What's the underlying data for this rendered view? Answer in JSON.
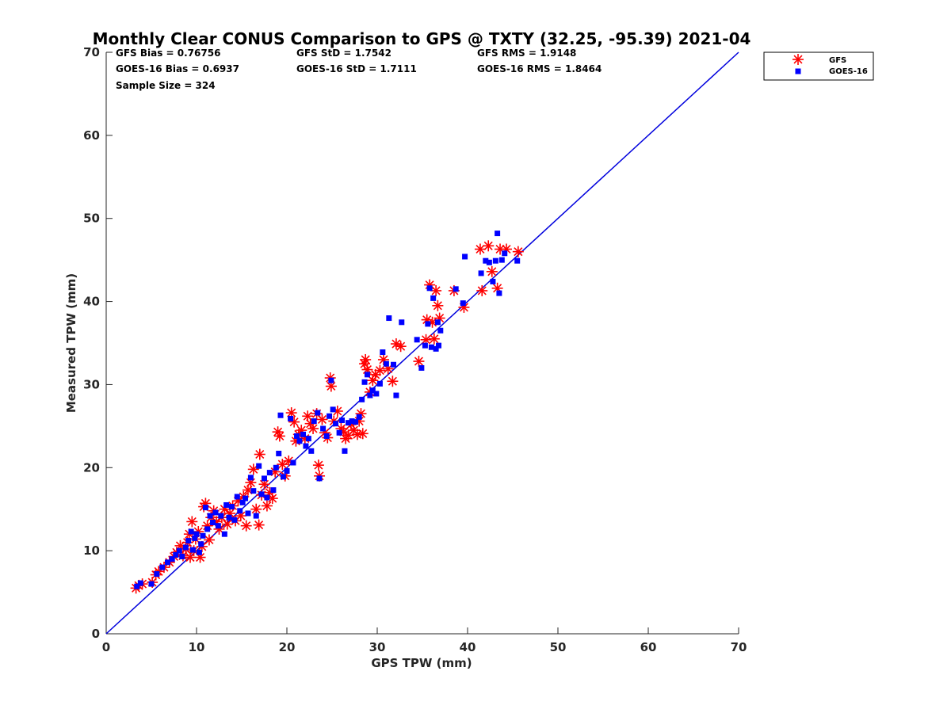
{
  "chart_data": {
    "type": "scatter",
    "title": "Monthly Clear CONUS Comparison to GPS @ TXTY (32.25, -95.39) 2021-04",
    "xlabel": "GPS TPW (mm)",
    "ylabel": "Measured TPW (mm)",
    "xlim": [
      0,
      70
    ],
    "ylim": [
      0,
      70
    ],
    "xticks": [
      "0",
      "10",
      "20",
      "30",
      "40",
      "50",
      "60",
      "70"
    ],
    "yticks": [
      "0",
      "10",
      "20",
      "30",
      "40",
      "50",
      "60",
      "70"
    ],
    "grid": false,
    "legend_position": "top-right",
    "stats": [
      "GFS Bias = 0.76756",
      "GFS StD = 1.7542",
      "GFS RMS = 1.9148",
      "GOES-16 Bias = 0.6937",
      "GOES-16 StD = 1.7111",
      "GOES-16 RMS = 1.8464",
      "Sample Size = 324"
    ],
    "reference_line": {
      "color": "#0000dd",
      "from": [
        0,
        0
      ],
      "to": [
        70,
        70
      ]
    },
    "series": [
      {
        "name": "GFS",
        "marker": "asterisk",
        "color": "#ff0000",
        "points": [
          [
            3.3,
            5.5
          ],
          [
            3.6,
            5.8
          ],
          [
            4.0,
            6.0
          ],
          [
            5.1,
            6.2
          ],
          [
            5.5,
            7.1
          ],
          [
            5.8,
            7.5
          ],
          [
            6.4,
            8.0
          ],
          [
            7.0,
            8.6
          ],
          [
            7.5,
            9.3
          ],
          [
            7.8,
            9.8
          ],
          [
            8.2,
            10.6
          ],
          [
            8.5,
            9.4
          ],
          [
            8.8,
            10.2
          ],
          [
            9.0,
            11.0
          ],
          [
            9.2,
            12.0
          ],
          [
            9.3,
            9.2
          ],
          [
            9.5,
            13.5
          ],
          [
            9.7,
            10.0
          ],
          [
            9.9,
            11.4
          ],
          [
            10.2,
            12.3
          ],
          [
            10.4,
            9.2
          ],
          [
            10.6,
            10.5
          ],
          [
            10.8,
            15.3
          ],
          [
            11.0,
            15.7
          ],
          [
            11.2,
            13.0
          ],
          [
            11.4,
            11.3
          ],
          [
            11.6,
            14.0
          ],
          [
            11.9,
            14.8
          ],
          [
            12.2,
            13.5
          ],
          [
            12.5,
            12.6
          ],
          [
            12.8,
            14.0
          ],
          [
            13.1,
            15.0
          ],
          [
            13.4,
            13.2
          ],
          [
            13.7,
            14.5
          ],
          [
            14.0,
            15.4
          ],
          [
            14.3,
            13.6
          ],
          [
            14.6,
            16.0
          ],
          [
            14.9,
            14.2
          ],
          [
            15.2,
            16.5
          ],
          [
            15.5,
            13.0
          ],
          [
            15.7,
            17.3
          ],
          [
            16.0,
            18.2
          ],
          [
            16.3,
            19.8
          ],
          [
            16.6,
            15.0
          ],
          [
            16.9,
            13.1
          ],
          [
            17.0,
            21.6
          ],
          [
            17.2,
            16.7
          ],
          [
            17.5,
            18.0
          ],
          [
            17.8,
            15.4
          ],
          [
            18.1,
            17.0
          ],
          [
            18.4,
            16.3
          ],
          [
            18.7,
            19.5
          ],
          [
            19.0,
            24.3
          ],
          [
            19.2,
            23.8
          ],
          [
            19.5,
            20.4
          ],
          [
            19.8,
            19.0
          ],
          [
            20.2,
            20.8
          ],
          [
            20.5,
            26.6
          ],
          [
            20.8,
            25.5
          ],
          [
            21.0,
            23.2
          ],
          [
            21.3,
            24.0
          ],
          [
            21.6,
            24.5
          ],
          [
            22.0,
            23.5
          ],
          [
            22.3,
            26.2
          ],
          [
            22.6,
            25.3
          ],
          [
            22.9,
            24.7
          ],
          [
            23.3,
            26.5
          ],
          [
            23.5,
            20.3
          ],
          [
            23.6,
            19.0
          ],
          [
            23.9,
            25.8
          ],
          [
            24.2,
            24.2
          ],
          [
            24.5,
            23.6
          ],
          [
            24.8,
            30.8
          ],
          [
            24.9,
            29.8
          ],
          [
            25.2,
            25.6
          ],
          [
            25.6,
            26.8
          ],
          [
            26.0,
            24.7
          ],
          [
            26.3,
            24.3
          ],
          [
            26.5,
            23.5
          ],
          [
            26.8,
            23.9
          ],
          [
            27.1,
            25.2
          ],
          [
            27.4,
            24.5
          ],
          [
            27.8,
            24.0
          ],
          [
            28.0,
            25.6
          ],
          [
            28.2,
            26.5
          ],
          [
            28.4,
            24.1
          ],
          [
            28.6,
            32.5
          ],
          [
            28.7,
            33.0
          ],
          [
            28.9,
            31.8
          ],
          [
            29.2,
            29.1
          ],
          [
            29.5,
            30.5
          ],
          [
            29.8,
            31.2
          ],
          [
            30.3,
            31.7
          ],
          [
            30.7,
            33.0
          ],
          [
            31.2,
            31.9
          ],
          [
            31.7,
            30.4
          ],
          [
            32.1,
            34.9
          ],
          [
            32.6,
            34.6
          ],
          [
            34.6,
            32.8
          ],
          [
            35.4,
            35.4
          ],
          [
            35.5,
            37.8
          ],
          [
            35.8,
            42.0
          ],
          [
            36.1,
            37.5
          ],
          [
            36.3,
            35.5
          ],
          [
            36.5,
            41.3
          ],
          [
            36.7,
            39.5
          ],
          [
            36.9,
            38.0
          ],
          [
            38.5,
            41.3
          ],
          [
            39.6,
            39.3
          ],
          [
            41.4,
            46.3
          ],
          [
            41.6,
            41.3
          ],
          [
            42.3,
            46.7
          ],
          [
            42.7,
            43.6
          ],
          [
            43.3,
            41.6
          ],
          [
            43.6,
            46.3
          ],
          [
            44.3,
            46.3
          ],
          [
            45.6,
            46.0
          ]
        ]
      },
      {
        "name": "GOES-16",
        "marker": "square",
        "color": "#0000ff",
        "points": [
          [
            3.4,
            5.7
          ],
          [
            3.8,
            6.1
          ],
          [
            5.0,
            6.0
          ],
          [
            5.6,
            7.2
          ],
          [
            6.2,
            8.0
          ],
          [
            6.8,
            8.6
          ],
          [
            7.3,
            9.0
          ],
          [
            7.7,
            9.5
          ],
          [
            8.1,
            10.0
          ],
          [
            8.4,
            9.3
          ],
          [
            8.8,
            10.4
          ],
          [
            9.1,
            11.2
          ],
          [
            9.4,
            12.3
          ],
          [
            9.6,
            10.1
          ],
          [
            9.8,
            11.5
          ],
          [
            10.0,
            12.0
          ],
          [
            10.3,
            9.8
          ],
          [
            10.5,
            10.8
          ],
          [
            10.7,
            11.8
          ],
          [
            11.0,
            15.2
          ],
          [
            11.2,
            12.6
          ],
          [
            11.5,
            14.2
          ],
          [
            11.8,
            13.4
          ],
          [
            12.1,
            14.6
          ],
          [
            12.4,
            13.0
          ],
          [
            12.7,
            14.2
          ],
          [
            13.1,
            12.0
          ],
          [
            13.3,
            15.5
          ],
          [
            13.6,
            14.0
          ],
          [
            13.9,
            15.3
          ],
          [
            14.2,
            13.7
          ],
          [
            14.5,
            16.5
          ],
          [
            14.8,
            14.8
          ],
          [
            15.1,
            15.8
          ],
          [
            15.4,
            16.3
          ],
          [
            15.7,
            14.5
          ],
          [
            16.0,
            18.8
          ],
          [
            16.3,
            17.2
          ],
          [
            16.6,
            14.2
          ],
          [
            16.9,
            20.2
          ],
          [
            17.2,
            16.8
          ],
          [
            17.5,
            18.7
          ],
          [
            17.8,
            16.4
          ],
          [
            18.1,
            19.4
          ],
          [
            18.5,
            17.3
          ],
          [
            18.8,
            20.0
          ],
          [
            19.1,
            21.7
          ],
          [
            19.3,
            26.3
          ],
          [
            19.6,
            18.9
          ],
          [
            20.0,
            19.6
          ],
          [
            20.4,
            25.9
          ],
          [
            20.7,
            20.6
          ],
          [
            21.1,
            23.8
          ],
          [
            21.4,
            23.2
          ],
          [
            21.8,
            24.0
          ],
          [
            22.1,
            22.6
          ],
          [
            22.4,
            23.5
          ],
          [
            22.7,
            22.0
          ],
          [
            23.0,
            25.6
          ],
          [
            23.4,
            26.6
          ],
          [
            23.6,
            18.7
          ],
          [
            24.0,
            24.7
          ],
          [
            24.4,
            23.8
          ],
          [
            24.7,
            26.2
          ],
          [
            24.9,
            30.5
          ],
          [
            25.1,
            27.0
          ],
          [
            25.4,
            25.3
          ],
          [
            25.8,
            24.2
          ],
          [
            26.1,
            25.7
          ],
          [
            26.4,
            22.0
          ],
          [
            26.8,
            25.4
          ],
          [
            27.2,
            25.6
          ],
          [
            27.6,
            25.5
          ],
          [
            28.0,
            26.1
          ],
          [
            28.3,
            28.2
          ],
          [
            28.6,
            30.3
          ],
          [
            28.9,
            31.2
          ],
          [
            29.2,
            28.7
          ],
          [
            29.5,
            29.3
          ],
          [
            29.9,
            28.9
          ],
          [
            30.3,
            30.1
          ],
          [
            30.6,
            33.9
          ],
          [
            31.0,
            32.5
          ],
          [
            31.3,
            38.0
          ],
          [
            31.8,
            32.4
          ],
          [
            32.1,
            28.7
          ],
          [
            32.7,
            37.5
          ],
          [
            34.4,
            35.4
          ],
          [
            34.9,
            32.0
          ],
          [
            35.3,
            34.7
          ],
          [
            35.6,
            37.3
          ],
          [
            35.8,
            41.6
          ],
          [
            36.0,
            34.5
          ],
          [
            36.2,
            40.4
          ],
          [
            36.5,
            34.3
          ],
          [
            36.7,
            37.5
          ],
          [
            36.8,
            34.7
          ],
          [
            37.0,
            36.5
          ],
          [
            38.7,
            41.5
          ],
          [
            39.5,
            39.8
          ],
          [
            39.7,
            45.4
          ],
          [
            41.5,
            43.4
          ],
          [
            42.0,
            44.9
          ],
          [
            42.4,
            44.7
          ],
          [
            42.8,
            42.4
          ],
          [
            43.1,
            44.9
          ],
          [
            43.3,
            48.2
          ],
          [
            43.5,
            41.0
          ],
          [
            43.8,
            45.0
          ],
          [
            44.1,
            45.8
          ],
          [
            45.5,
            44.9
          ]
        ]
      }
    ]
  }
}
